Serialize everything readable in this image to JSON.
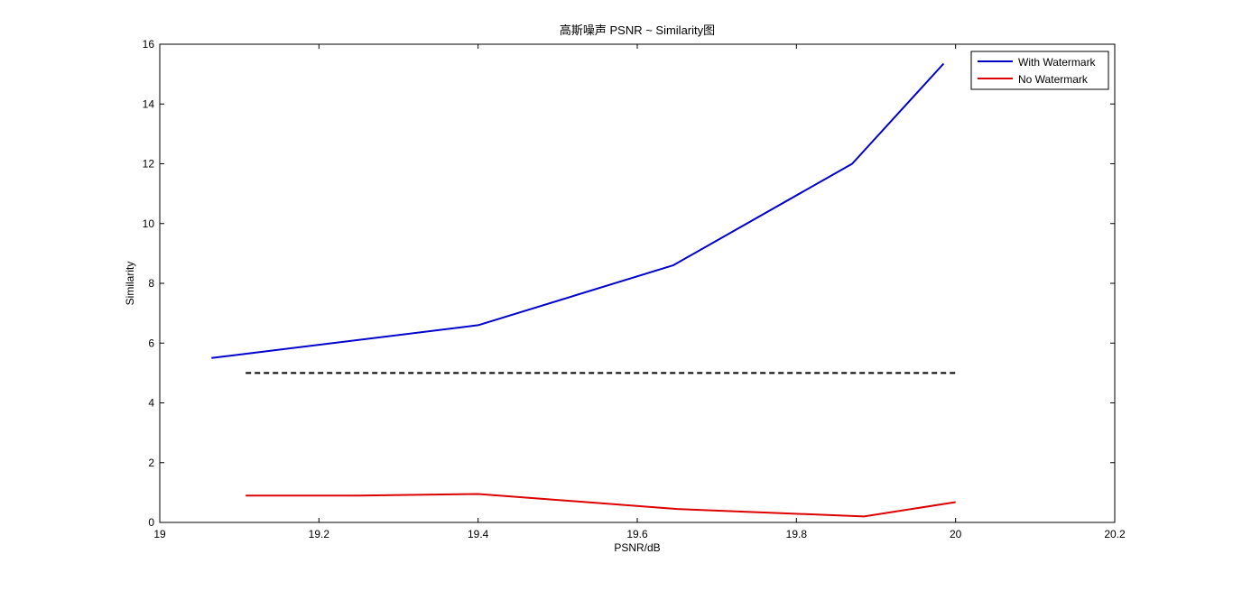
{
  "chart_data": {
    "type": "line",
    "title": "高斯噪声 PSNR ~ Similarity图",
    "xlabel": "PSNR/dB",
    "ylabel": "Similarity",
    "xlim": [
      19,
      20.2
    ],
    "ylim": [
      0,
      16
    ],
    "xticks": [
      19,
      19.2,
      19.4,
      19.6,
      19.8,
      20,
      20.2
    ],
    "xtick_labels": [
      "19",
      "19.2",
      "19.4",
      "19.6",
      "19.8",
      "20",
      "20.2"
    ],
    "yticks": [
      0,
      2,
      4,
      6,
      8,
      10,
      12,
      14,
      16
    ],
    "ytick_labels": [
      "0",
      "2",
      "4",
      "6",
      "8",
      "10",
      "12",
      "14",
      "16"
    ],
    "grid": false,
    "legend_position": "top-right",
    "series": [
      {
        "name": "With Watermark",
        "color": "#0000cc",
        "style": "solid",
        "x": [
          19.065,
          19.4,
          19.645,
          19.87,
          19.985
        ],
        "y": [
          5.5,
          6.6,
          8.6,
          12.0,
          15.35
        ]
      },
      {
        "name": "No Watermark",
        "color": "#dd0000",
        "style": "solid",
        "x": [
          19.108,
          19.25,
          19.4,
          19.65,
          19.885,
          20.0
        ],
        "y": [
          0.9,
          0.9,
          0.95,
          0.45,
          0.2,
          0.68
        ]
      },
      {
        "color": "#000000",
        "style": "dashed",
        "x": [
          19.108,
          20.0
        ],
        "y": [
          5,
          5
        ]
      }
    ]
  }
}
